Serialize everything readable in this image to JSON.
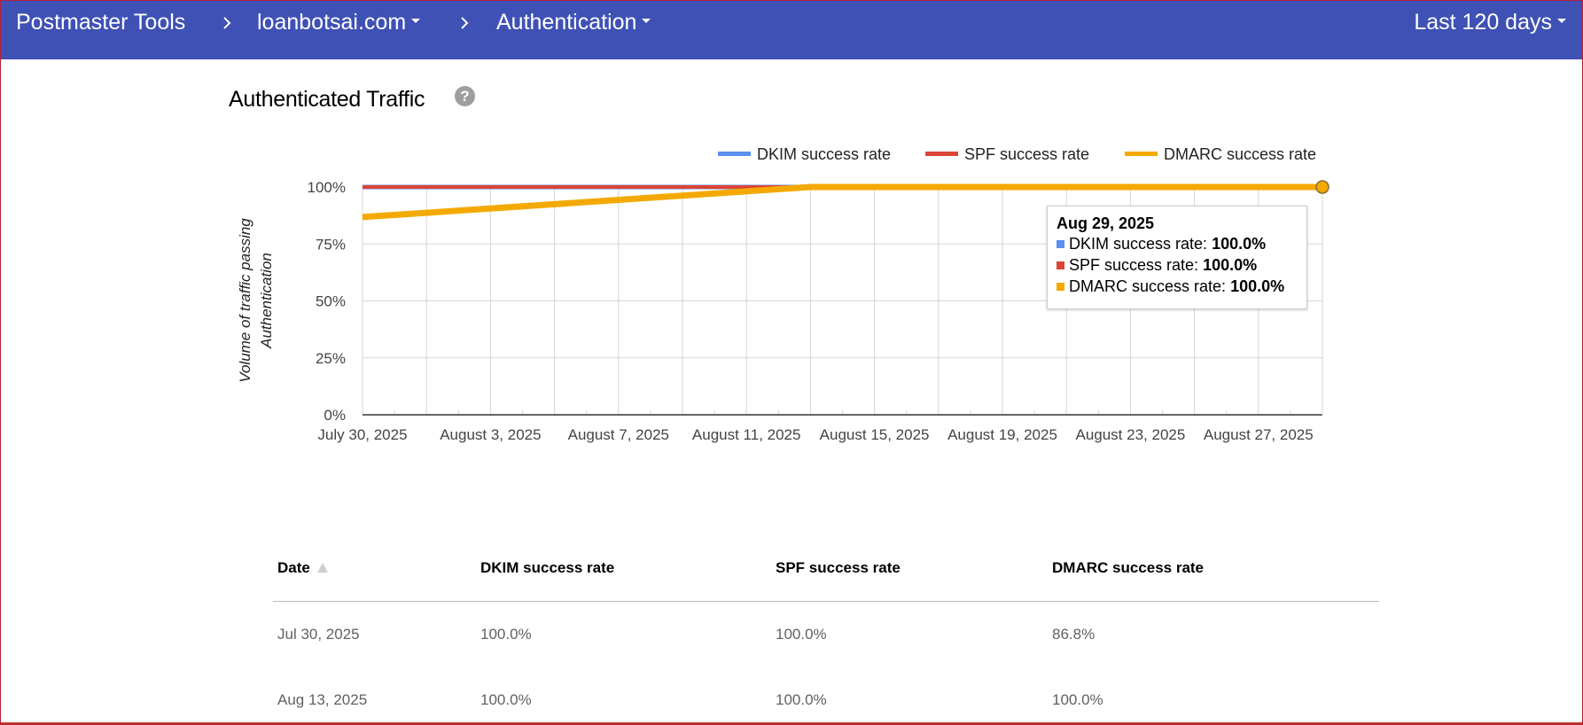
{
  "header": {
    "breadcrumb": [
      {
        "label": "Postmaster Tools",
        "dropdown": false
      },
      {
        "label": "loanbotsai.com",
        "dropdown": true
      },
      {
        "label": "Authentication",
        "dropdown": true
      }
    ],
    "date_range": "Last 120 days",
    "background_color": "#3f51b5"
  },
  "section": {
    "title": "Authenticated Traffic",
    "help_icon": "help-circle-icon"
  },
  "chart_data": {
    "type": "line",
    "title": "Authenticated Traffic",
    "xlabel": "",
    "ylabel": "Volume of traffic passing Authentication",
    "ylim": [
      0,
      100
    ],
    "yticks": [
      "0%",
      "25%",
      "50%",
      "75%",
      "100%"
    ],
    "ytick_values": [
      0,
      25,
      50,
      75,
      100
    ],
    "xticks": [
      "July 30, 2025",
      "August 3, 2025",
      "August 7, 2025",
      "August 11, 2025",
      "August 15, 2025",
      "August 19, 2025",
      "August 23, 2025",
      "August 27, 2025"
    ],
    "xtick_day_offsets": [
      0,
      4,
      8,
      12,
      16,
      20,
      24,
      28
    ],
    "x_range_days": [
      0,
      30
    ],
    "x_start": "Jul 30, 2025",
    "x_end": "Aug 29, 2025",
    "grid": true,
    "legend_position": "top-right",
    "series": [
      {
        "name": "DKIM success rate",
        "color": "#5b8ff0",
        "points": [
          [
            0,
            100
          ],
          [
            14,
            100
          ],
          [
            30,
            100
          ]
        ]
      },
      {
        "name": "SPF success rate",
        "color": "#db4437",
        "points": [
          [
            0,
            100
          ],
          [
            14,
            100
          ],
          [
            30,
            100
          ]
        ]
      },
      {
        "name": "DMARC success rate",
        "color": "#f4a900",
        "points": [
          [
            0,
            86.8
          ],
          [
            14,
            100
          ],
          [
            30,
            100
          ]
        ]
      }
    ],
    "tooltip": {
      "date": "Aug 29, 2025",
      "rows": [
        {
          "label": "DKIM success rate:",
          "value": "100.0%",
          "color": "#5b8ff0"
        },
        {
          "label": "SPF success rate:",
          "value": "100.0%",
          "color": "#db4437"
        },
        {
          "label": "DMARC success rate:",
          "value": "100.0%",
          "color": "#f4a900"
        }
      ]
    }
  },
  "table": {
    "columns": [
      "Date",
      "DKIM success rate",
      "SPF success rate",
      "DMARC success rate"
    ],
    "sort_column": "Date",
    "sort_direction": "ascending",
    "rows": [
      [
        "Jul 30, 2025",
        "100.0%",
        "100.0%",
        "86.8%"
      ],
      [
        "Aug 13, 2025",
        "100.0%",
        "100.0%",
        "100.0%"
      ]
    ]
  }
}
